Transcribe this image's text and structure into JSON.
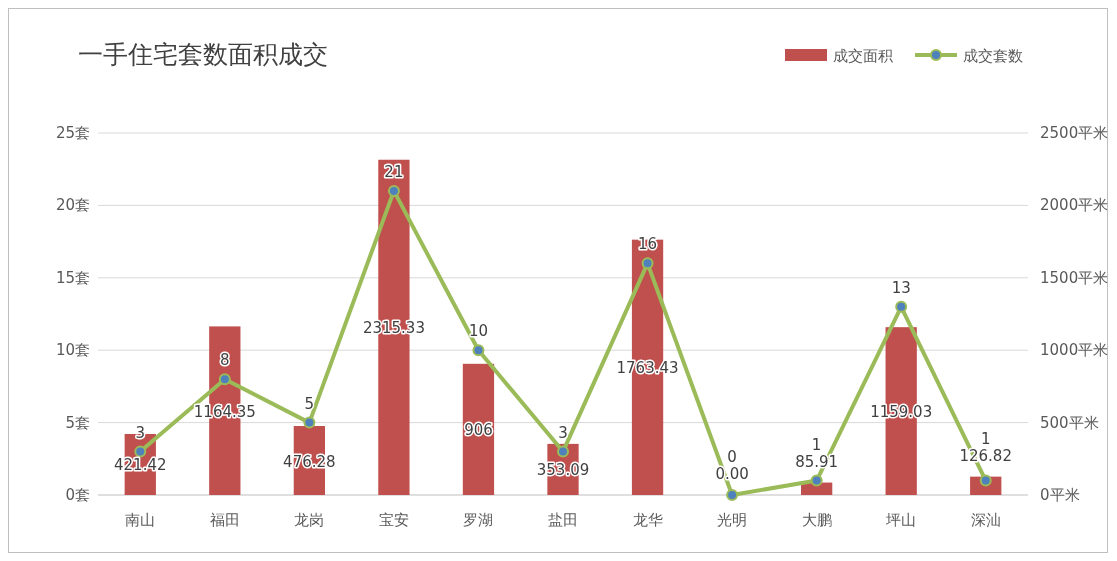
{
  "chart_data": {
    "type": "bar",
    "title": "一手住宅套数面积成交",
    "categories": [
      "南山",
      "福田",
      "龙岗",
      "宝安",
      "罗湖",
      "盐田",
      "龙华",
      "光明",
      "大鹏",
      "坪山",
      "深汕"
    ],
    "series": [
      {
        "name": "成交面积",
        "axis": "y2",
        "color": "#c0504d",
        "values": [
          421.42,
          1164.35,
          476.28,
          2315.33,
          906,
          353.09,
          1763.43,
          0,
          85.91,
          1159.03,
          126.82
        ],
        "value_labels": [
          "421.42",
          "1164.35",
          "476.28",
          "2315.33",
          "906",
          "353.09",
          "1763.43",
          "0.00",
          "85.91",
          "1159.03",
          "126.82"
        ]
      },
      {
        "name": "成交套数",
        "type": "line",
        "axis": "y",
        "color": "#9bbb59",
        "marker": "circle",
        "values": [
          3,
          8,
          5,
          21,
          10,
          3,
          16,
          0,
          1,
          13,
          1
        ],
        "value_labels": [
          "3",
          "8",
          "5",
          "21",
          "10",
          "3",
          "16",
          "0",
          "1",
          "13",
          "1"
        ]
      }
    ],
    "ylim": [
      0,
      25
    ],
    "yticks": [
      {
        "value": 0,
        "label": "0套"
      },
      {
        "value": 5,
        "label": "5套"
      },
      {
        "value": 10,
        "label": "10套"
      },
      {
        "value": 15,
        "label": "15套"
      },
      {
        "value": 20,
        "label": "20套"
      },
      {
        "value": 25,
        "label": "25套"
      }
    ],
    "y2lim": [
      0,
      2500
    ],
    "y2ticks": [
      {
        "value": 0,
        "label": "0平米"
      },
      {
        "value": 500,
        "label": "500平米"
      },
      {
        "value": 1000,
        "label": "1000平米"
      },
      {
        "value": 1500,
        "label": "1500平米"
      },
      {
        "value": 2000,
        "label": "2000平米"
      },
      {
        "value": 2500,
        "label": "2500平米"
      }
    ],
    "grid": "y",
    "legend": "top right"
  }
}
